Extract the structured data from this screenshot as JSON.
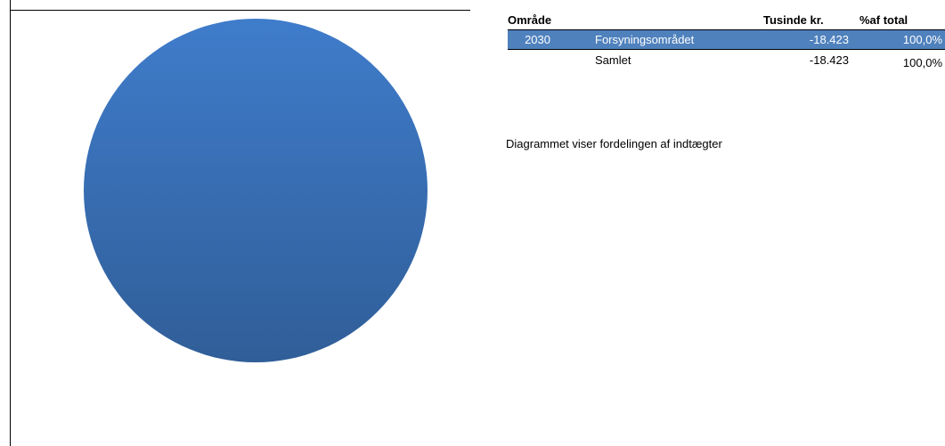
{
  "chart_data": {
    "type": "pie",
    "title": "",
    "categories": [
      "Forsyningsområdet"
    ],
    "values": [
      -18.423
    ],
    "shares_percent": [
      100.0
    ],
    "colors": [
      "#4f81bd"
    ]
  },
  "table": {
    "headers": {
      "area": "Område",
      "amount": "Tusinde kr.",
      "pct": "%af total"
    },
    "rows": [
      {
        "code": "2030",
        "name": "Forsyningsområdet",
        "amount": "-18.423",
        "pct": "100,0%"
      }
    ],
    "total": {
      "name": "Samlet",
      "amount": "-18.423",
      "pct": "100,0%"
    }
  },
  "note": "Diagrammet viser fordelingen af indtægter",
  "colors": {
    "selection": "#4f81bd",
    "pie_light": "#3f7ccb",
    "pie_dark": "#305e98"
  }
}
